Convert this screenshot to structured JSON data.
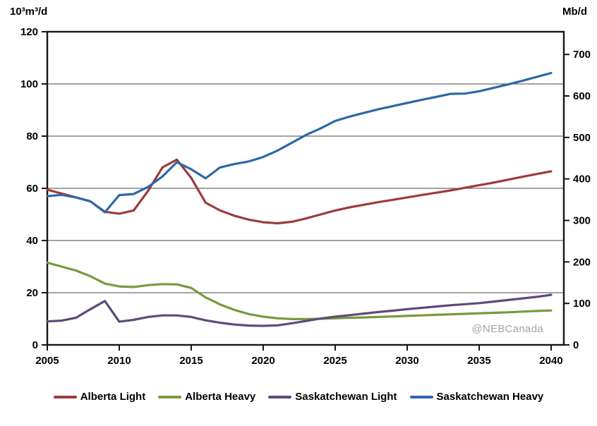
{
  "watermark": "@NEBCanada",
  "chart_data": {
    "type": "line",
    "title": "",
    "grid": true,
    "legend_position": "bottom",
    "x_years": [
      2005,
      2006,
      2007,
      2008,
      2009,
      2010,
      2011,
      2012,
      2013,
      2014,
      2015,
      2016,
      2017,
      2018,
      2019,
      2020,
      2021,
      2022,
      2023,
      2024,
      2025,
      2026,
      2027,
      2028,
      2029,
      2030,
      2031,
      2032,
      2033,
      2034,
      2035,
      2036,
      2037,
      2038,
      2039,
      2040
    ],
    "series": [
      {
        "name": "Alberta Light",
        "color": "#9E3B3B",
        "values": [
          59.5,
          58,
          56.5,
          55,
          51,
          50.3,
          51.5,
          59,
          68,
          71,
          64,
          54.5,
          51.5,
          49.5,
          48,
          47,
          46.6,
          47.2,
          48.5,
          50,
          51.5,
          52.7,
          53.7,
          54.7,
          55.6,
          56.5,
          57.4,
          58.3,
          59.2,
          60.2,
          61.2,
          62.2,
          63.3,
          64.4,
          65.5,
          66.5
        ]
      },
      {
        "name": "Alberta Heavy",
        "color": "#789A3D",
        "values": [
          31.5,
          30,
          28.5,
          26.3,
          23.5,
          22.4,
          22.2,
          22.9,
          23.3,
          23.2,
          21.8,
          18.2,
          15.5,
          13.4,
          11.8,
          10.8,
          10.2,
          9.9,
          9.9,
          10,
          10.2,
          10.4,
          10.5,
          10.7,
          10.9,
          11.1,
          11.3,
          11.5,
          11.7,
          11.9,
          12.1,
          12.3,
          12.5,
          12.75,
          13,
          13.2
        ]
      },
      {
        "name": "Saskatchewan Light",
        "color": "#5F4A7B",
        "values": [
          9,
          9.3,
          10.4,
          13.7,
          16.8,
          8.9,
          9.6,
          10.7,
          11.3,
          11.3,
          10.7,
          9.4,
          8.5,
          7.8,
          7.4,
          7.3,
          7.5,
          8.3,
          9.2,
          10.1,
          10.8,
          11.4,
          12,
          12.6,
          13.1,
          13.7,
          14.2,
          14.7,
          15.2,
          15.6,
          16,
          16.6,
          17.2,
          17.8,
          18.4,
          19.2
        ]
      },
      {
        "name": "Saskatchewan Heavy",
        "color": "#2D68A6",
        "values": [
          57,
          57.5,
          56.5,
          55,
          50.8,
          57.4,
          57.8,
          60.5,
          64.5,
          70,
          67.3,
          63.8,
          68,
          69.3,
          70.3,
          72,
          74.5,
          77.5,
          80.5,
          83,
          85.8,
          87.5,
          88.9,
          90.3,
          91.5,
          92.7,
          93.9,
          95,
          96.2,
          96.3,
          97.2,
          98.5,
          99.8,
          101.2,
          102.7,
          104.2
        ]
      }
    ],
    "left_axis": {
      "label": "10³m³/d",
      "min": 0,
      "max": 120,
      "ticks": [
        0,
        20,
        40,
        60,
        80,
        100,
        120
      ],
      "gridlines": [
        20,
        40,
        60,
        80,
        100
      ]
    },
    "right_axis": {
      "label": "Mb/d",
      "ticks": [
        0,
        100,
        200,
        300,
        400,
        500,
        600,
        700
      ],
      "barrels_per_m3": 6.2898
    },
    "x_axis": {
      "min": 2005,
      "max": 2040,
      "ticks": [
        2005,
        2010,
        2015,
        2020,
        2025,
        2030,
        2035,
        2040
      ]
    }
  }
}
